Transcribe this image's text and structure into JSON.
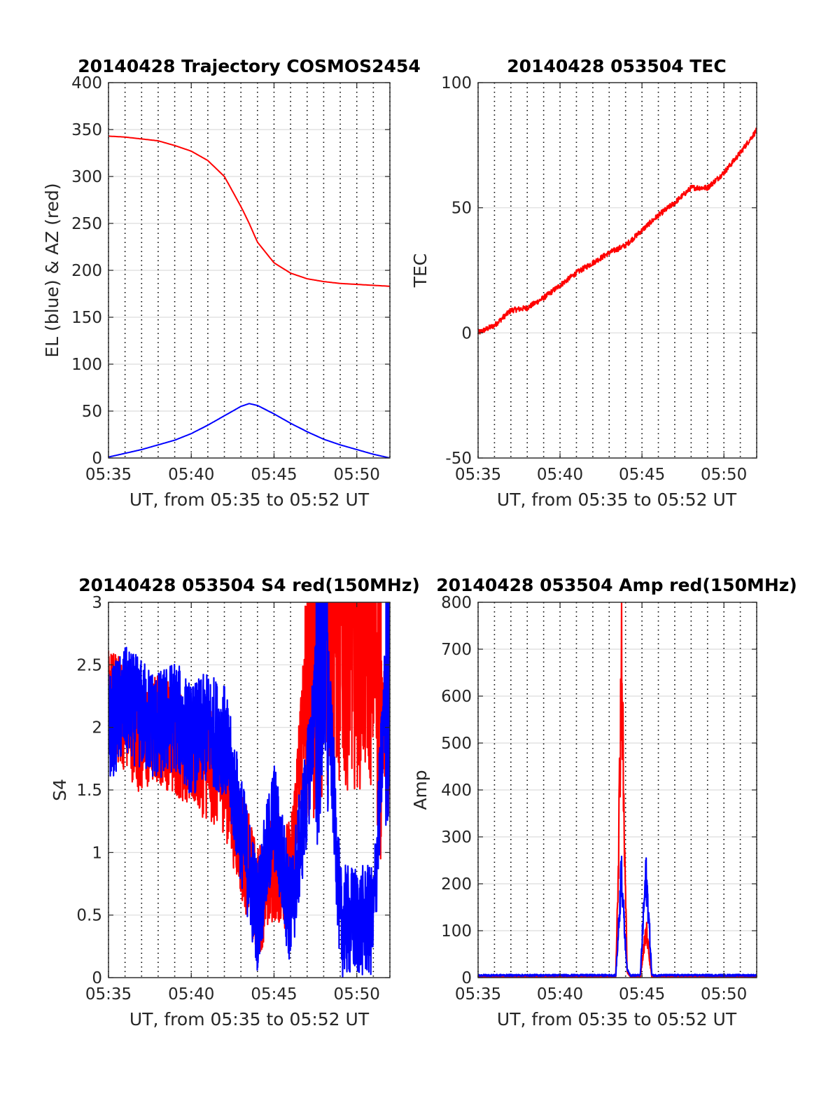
{
  "figure": {
    "colors": {
      "red": "#ff0000",
      "blue": "#0000ff",
      "grid": "#dcdcdc",
      "axis": "#262626"
    }
  },
  "chart_data": [
    {
      "type": "line",
      "title": "20140428 Trajectory COSMOS2454",
      "xlabel": "UT, from 05:35 to 05:52 UT",
      "ylabel": "EL (blue) & AZ (red)",
      "xlim": [
        "05:35",
        "05:52"
      ],
      "ylim": [
        0,
        400
      ],
      "x_ticks": [
        "05:35",
        "05:40",
        "05:45",
        "05:50"
      ],
      "y_ticks": [
        "0",
        "50",
        "100",
        "150",
        "200",
        "250",
        "300",
        "350",
        "400"
      ],
      "grid": "on (dotted minute lines)",
      "series": [
        {
          "color": "red",
          "x": [
            "05:35",
            "05:36",
            "05:37",
            "05:38",
            "05:39",
            "05:40",
            "05:41",
            "05:42",
            "05:43",
            "05:43.5",
            "05:44",
            "05:45",
            "05:46",
            "05:47",
            "05:48",
            "05:49",
            "05:50",
            "05:51",
            "05:52"
          ],
          "values": [
            343,
            342,
            340,
            338,
            333,
            327,
            317,
            300,
            268,
            250,
            230,
            208,
            197,
            191,
            188,
            186,
            185,
            184,
            183
          ]
        },
        {
          "color": "blue",
          "x": [
            "05:35",
            "05:36",
            "05:37",
            "05:38",
            "05:39",
            "05:40",
            "05:41",
            "05:42",
            "05:43",
            "05:43.5",
            "05:44",
            "05:45",
            "05:46",
            "05:47",
            "05:48",
            "05:49",
            "05:50",
            "05:51",
            "05:52"
          ],
          "values": [
            1,
            5,
            9,
            14,
            19,
            26,
            35,
            45,
            55,
            58,
            56,
            47,
            37,
            28,
            20,
            14,
            9,
            4,
            0
          ]
        }
      ]
    },
    {
      "type": "line",
      "title": "20140428 053504 TEC",
      "xlabel": "UT, from 05:35 to 05:52 UT",
      "ylabel": "TEC",
      "xlim": [
        "05:35",
        "05:52"
      ],
      "ylim": [
        -50,
        100
      ],
      "x_ticks": [
        "05:35",
        "05:40",
        "05:45",
        "05:50"
      ],
      "y_ticks": [
        "-50",
        "0",
        "50",
        "100"
      ],
      "grid": "on (dotted minute lines)",
      "series": [
        {
          "color": "red",
          "x": [
            "05:35",
            "05:36",
            "05:37",
            "05:38",
            "05:39",
            "05:40",
            "05:41",
            "05:42",
            "05:43",
            "05:44",
            "05:45",
            "05:46",
            "05:47",
            "05:48",
            "05:49",
            "05:50",
            "05:51",
            "05:52"
          ],
          "values": [
            0,
            3,
            9,
            10,
            14,
            19,
            24,
            28,
            32,
            35,
            41,
            47,
            52,
            58,
            58,
            64,
            72,
            81
          ]
        }
      ]
    },
    {
      "type": "line",
      "title": "20140428 053504 S4 red(150MHz)",
      "xlabel": "UT, from 05:35 to 05:52 UT",
      "ylabel": "S4",
      "xlim": [
        "05:35",
        "05:52"
      ],
      "ylim": [
        0,
        3
      ],
      "x_ticks": [
        "05:35",
        "05:40",
        "05:45",
        "05:50"
      ],
      "y_ticks": [
        "0",
        "0.5",
        "1",
        "1.5",
        "2",
        "2.5",
        "3"
      ],
      "grid": "on (dotted minute lines)",
      "series": [
        {
          "color": "red",
          "x": [
            "05:35",
            "05:36",
            "05:37",
            "05:38",
            "05:39",
            "05:40",
            "05:41",
            "05:42",
            "05:43",
            "05:44",
            "05:45",
            "05:46",
            "05:47",
            "05:48",
            "05:49",
            "05:50",
            "05:51",
            "05:52"
          ],
          "values": [
            2.2,
            2.1,
            1.9,
            2.0,
            1.9,
            1.8,
            1.7,
            1.6,
            1.1,
            0.6,
            0.9,
            0.8,
            2.5,
            3.0,
            3.0,
            3.0,
            3.0,
            1.5
          ]
        },
        {
          "color": "blue",
          "x": [
            "05:35",
            "05:36",
            "05:37",
            "05:38",
            "05:39",
            "05:40",
            "05:41",
            "05:42",
            "05:43",
            "05:44",
            "05:45",
            "05:46",
            "05:47",
            "05:48",
            "05:49",
            "05:50",
            "05:51",
            "05:52"
          ],
          "values": [
            2.0,
            2.2,
            2.1,
            2.0,
            2.1,
            1.9,
            2.0,
            1.9,
            1.2,
            0.5,
            1.3,
            0.5,
            1.5,
            3.0,
            0.45,
            0.45,
            0.45,
            3.0
          ]
        }
      ]
    },
    {
      "type": "line",
      "title": "20140428 053504 Amp red(150MHz)",
      "xlabel": "UT, from 05:35 to 05:52 UT",
      "ylabel": "Amp",
      "xlim": [
        "05:35",
        "05:52"
      ],
      "ylim": [
        0,
        800
      ],
      "x_ticks": [
        "05:35",
        "05:40",
        "05:45",
        "05:50"
      ],
      "y_ticks": [
        "0",
        "100",
        "200",
        "300",
        "400",
        "500",
        "600",
        "700",
        "800"
      ],
      "grid": "on (dotted minute lines)",
      "series": [
        {
          "color": "red",
          "x": [
            "05:35",
            "05:43.4",
            "05:43.6",
            "05:43.75",
            "05:43.9",
            "05:44.1",
            "05:44.3",
            "05:44.9",
            "05:45.1",
            "05:45.25",
            "05:45.4",
            "05:45.6",
            "05:52"
          ],
          "values": [
            0,
            0,
            330,
            705,
            330,
            10,
            0,
            0,
            60,
            105,
            60,
            0,
            0
          ]
        },
        {
          "color": "blue",
          "x": [
            "05:35",
            "05:43.4",
            "05:43.6",
            "05:43.75",
            "05:43.9",
            "05:44.1",
            "05:44.3",
            "05:44.9",
            "05:45.1",
            "05:45.25",
            "05:45.4",
            "05:45.6",
            "05:52"
          ],
          "values": [
            3,
            3,
            120,
            240,
            120,
            15,
            3,
            3,
            140,
            215,
            140,
            3,
            3
          ]
        }
      ]
    }
  ]
}
